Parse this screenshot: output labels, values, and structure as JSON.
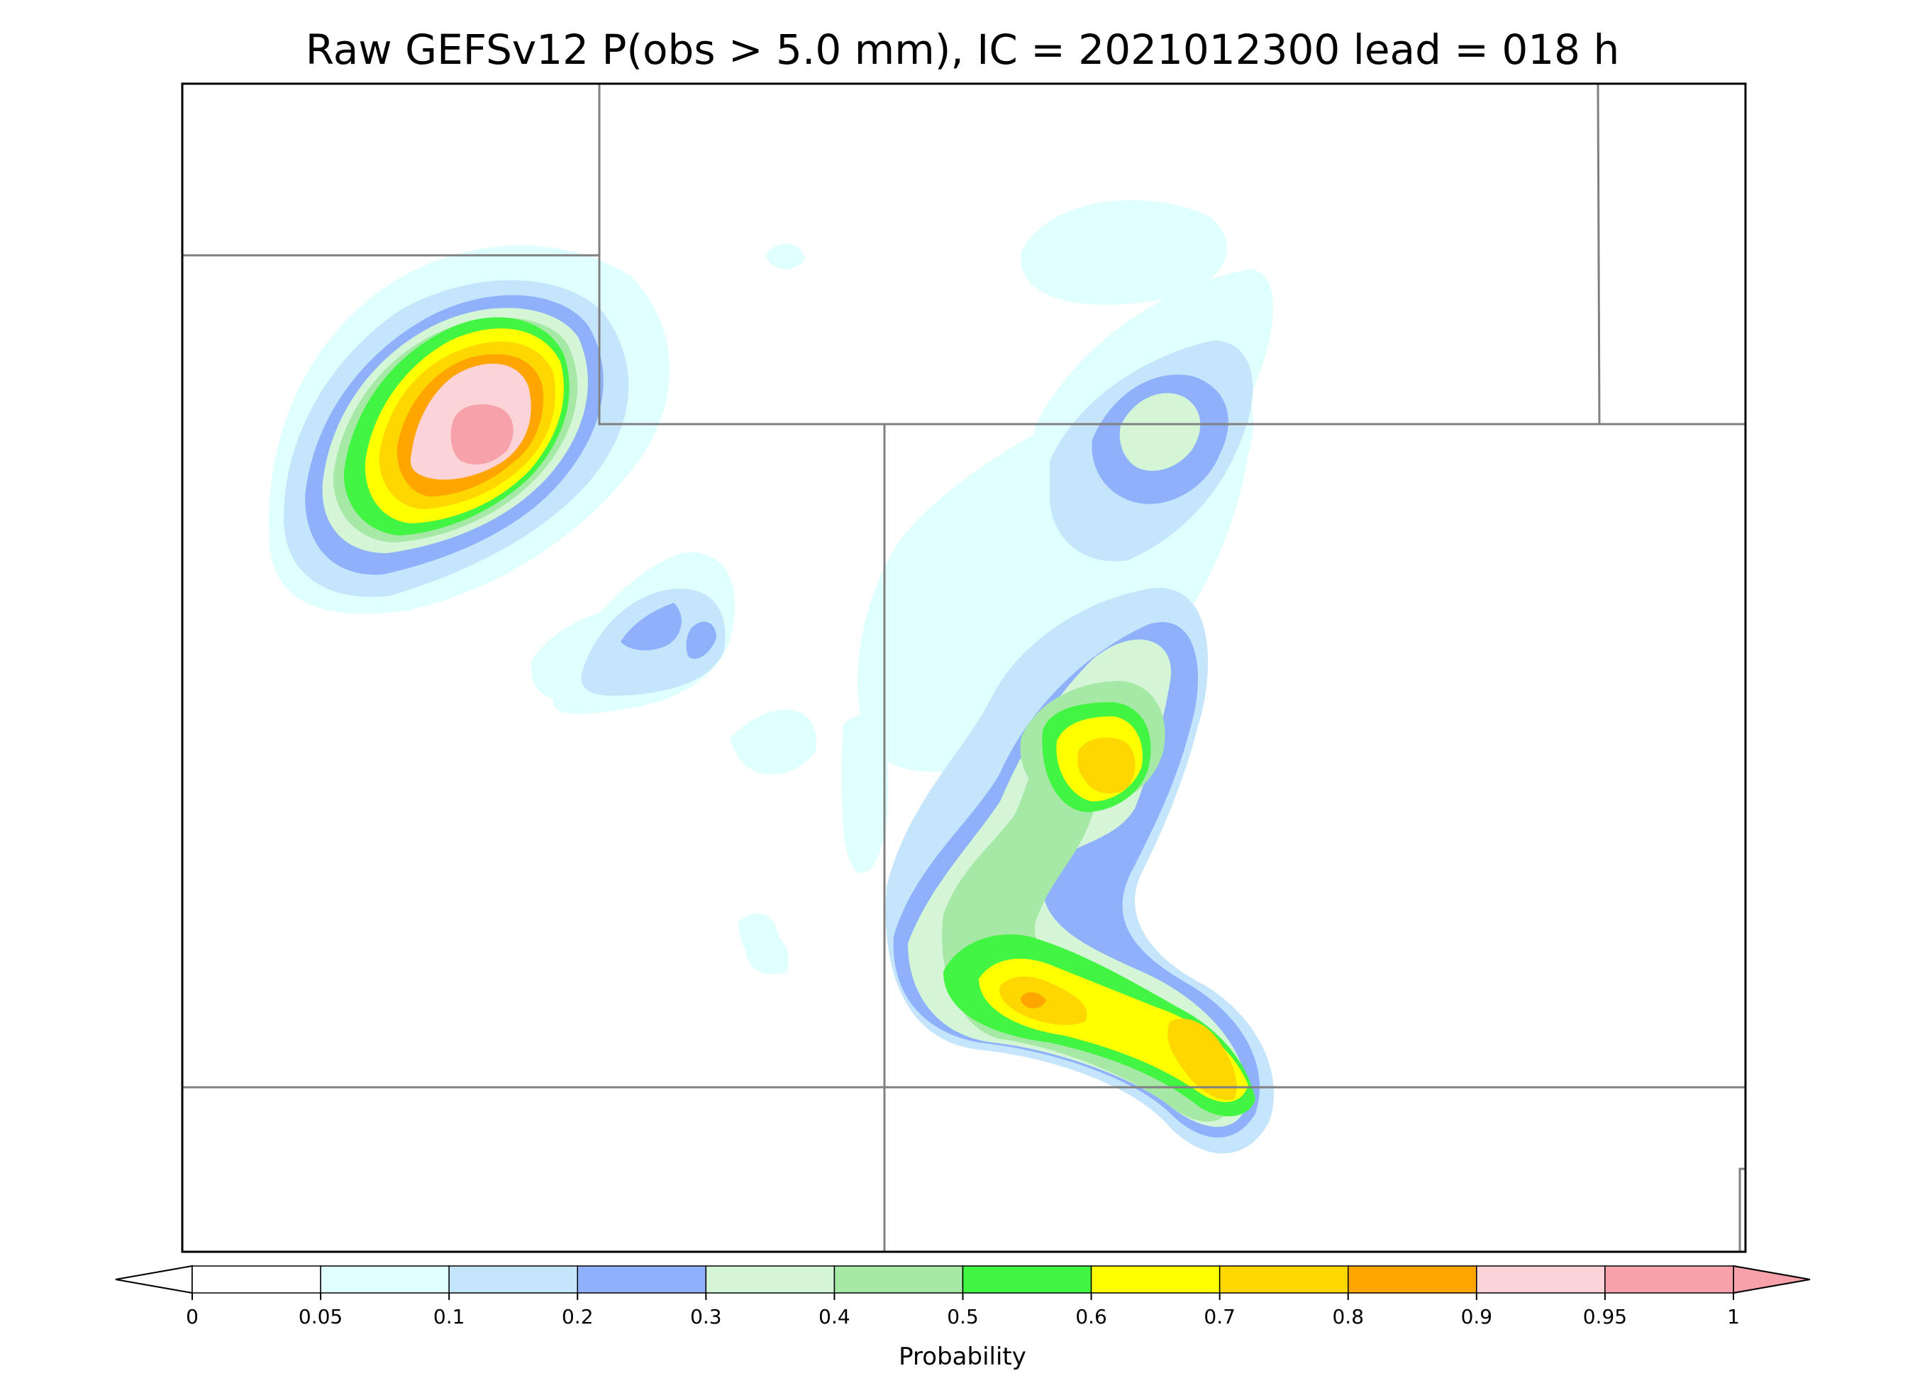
{
  "figure": {
    "title": "Raw GEFSv12 P(obs > 5.0 mm), IC = 2021012300 lead = 018 h"
  },
  "colorbar": {
    "label": "Probability",
    "ticks": [
      "0",
      "0.05",
      "0.1",
      "0.2",
      "0.3",
      "0.4",
      "0.5",
      "0.6",
      "0.7",
      "0.8",
      "0.9",
      "0.95",
      "1"
    ],
    "colors": [
      "#ffffff",
      "#e0ffff",
      "#c4e5fb",
      "#8fb1fc",
      "#d4f5d6",
      "#a6e8a6",
      "#42f542",
      "#ffff00",
      "#ffd700",
      "#ffa500",
      "#fcd4d8",
      "#f7a1aa"
    ],
    "under_color": "#ffffff",
    "over_color": "#f7a1aa"
  },
  "chart_data": {
    "type": "filled-contour map",
    "title": "Raw GEFSv12 P(obs > 5.0 mm), IC = 2021012300 lead = 018 h",
    "variable": "Probability",
    "levels": [
      0,
      0.05,
      0.1,
      0.2,
      0.3,
      0.4,
      0.5,
      0.6,
      0.7,
      0.8,
      0.9,
      0.95,
      1
    ],
    "extend": "both",
    "features": [
      {
        "name": "northwest maximum",
        "peak_probability": 0.95
      },
      {
        "name": "central maximum",
        "peak_probability": 0.7
      },
      {
        "name": "southern maximum",
        "peak_probability": 0.8
      },
      {
        "name": "southeastern maximum",
        "peak_probability": 0.7
      },
      {
        "name": "northern minor maximum",
        "peak_probability": 0.3
      },
      {
        "name": "western minor maximum",
        "peak_probability": 0.2
      }
    ]
  }
}
